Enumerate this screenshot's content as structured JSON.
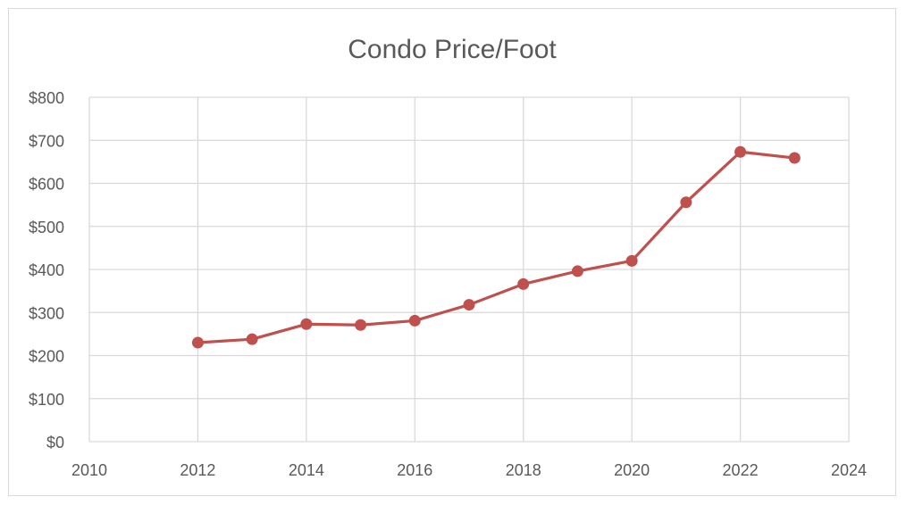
{
  "chart_data": {
    "type": "line",
    "title": "Condo Price/Foot",
    "xlabel": "",
    "ylabel": "",
    "xlim": [
      2010,
      2024
    ],
    "ylim": [
      0,
      800
    ],
    "x_ticks": [
      2010,
      2012,
      2014,
      2016,
      2018,
      2020,
      2022,
      2024
    ],
    "x_tick_labels": [
      "2010",
      "2012",
      "2014",
      "2016",
      "2018",
      "2020",
      "2022",
      "2024"
    ],
    "y_ticks": [
      0,
      100,
      200,
      300,
      400,
      500,
      600,
      700,
      800
    ],
    "y_tick_labels": [
      "$0",
      "$100",
      "$200",
      "$300",
      "$400",
      "$500",
      "$600",
      "$700",
      "$800"
    ],
    "grid": true,
    "legend": "none",
    "series": [
      {
        "color": "#c0504d",
        "x": [
          2012,
          2013,
          2014,
          2015,
          2016,
          2017,
          2018,
          2019,
          2020,
          2021,
          2022,
          2023
        ],
        "y": [
          230,
          238,
          273,
          271,
          281,
          318,
          366,
          396,
          420,
          556,
          673,
          659
        ]
      }
    ],
    "colors": {
      "gridline": "#d9d9d9",
      "text": "#595959",
      "series": "#c0504d"
    }
  }
}
